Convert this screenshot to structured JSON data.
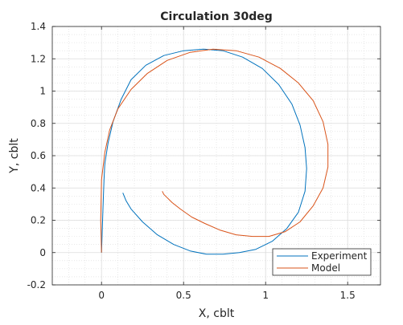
{
  "chart_data": {
    "type": "line",
    "title": "Circulation 30deg",
    "xlabel": "X, cblt",
    "ylabel": "Y, cblt",
    "xlim": [
      -0.3,
      1.7
    ],
    "ylim": [
      -0.2,
      1.4
    ],
    "xticks": [
      0,
      0.5,
      1,
      1.5
    ],
    "xtick_labels": [
      "0",
      "0.5",
      "1",
      "1.5"
    ],
    "yticks": [
      -0.2,
      0,
      0.2,
      0.4,
      0.6,
      0.8,
      1.0,
      1.2,
      1.4
    ],
    "ytick_labels": [
      "-0.2",
      "0",
      "0.2",
      "0.4",
      "0.6",
      "0.8",
      "1",
      "1.2",
      "1.4"
    ],
    "grid": true,
    "minor_grid": true,
    "legend_position": "bottom-right",
    "series": [
      {
        "name": "Experiment",
        "color": "#0072BD",
        "x": [
          0.0,
          0.005,
          0.01,
          0.015,
          0.02,
          0.04,
          0.07,
          0.12,
          0.18,
          0.27,
          0.38,
          0.5,
          0.62,
          0.74,
          0.86,
          0.98,
          1.08,
          1.16,
          1.21,
          1.24,
          1.25,
          1.24,
          1.2,
          1.13,
          1.04,
          0.94,
          0.84,
          0.74,
          0.64,
          0.54,
          0.44,
          0.34,
          0.25,
          0.18,
          0.15,
          0.13
        ],
        "y": [
          0.0,
          0.15,
          0.3,
          0.45,
          0.55,
          0.68,
          0.81,
          0.95,
          1.07,
          1.16,
          1.22,
          1.25,
          1.26,
          1.25,
          1.21,
          1.14,
          1.04,
          0.92,
          0.79,
          0.65,
          0.52,
          0.38,
          0.25,
          0.15,
          0.07,
          0.02,
          0.0,
          -0.01,
          -0.01,
          0.01,
          0.05,
          0.11,
          0.19,
          0.27,
          0.32,
          0.37
        ]
      },
      {
        "name": "Model",
        "color": "#D95319",
        "x": [
          0.0,
          -0.005,
          0.0,
          0.02,
          0.05,
          0.1,
          0.18,
          0.28,
          0.4,
          0.54,
          0.68,
          0.82,
          0.96,
          1.09,
          1.2,
          1.29,
          1.35,
          1.38,
          1.38,
          1.35,
          1.29,
          1.21,
          1.12,
          1.02,
          0.92,
          0.82,
          0.72,
          0.63,
          0.55,
          0.48,
          0.43,
          0.4,
          0.38,
          0.37
        ],
        "y": [
          0.0,
          0.2,
          0.45,
          0.62,
          0.76,
          0.89,
          1.01,
          1.11,
          1.19,
          1.24,
          1.26,
          1.25,
          1.21,
          1.14,
          1.05,
          0.94,
          0.81,
          0.67,
          0.53,
          0.4,
          0.29,
          0.19,
          0.13,
          0.1,
          0.1,
          0.11,
          0.14,
          0.18,
          0.22,
          0.27,
          0.31,
          0.34,
          0.36,
          0.38
        ]
      }
    ]
  }
}
